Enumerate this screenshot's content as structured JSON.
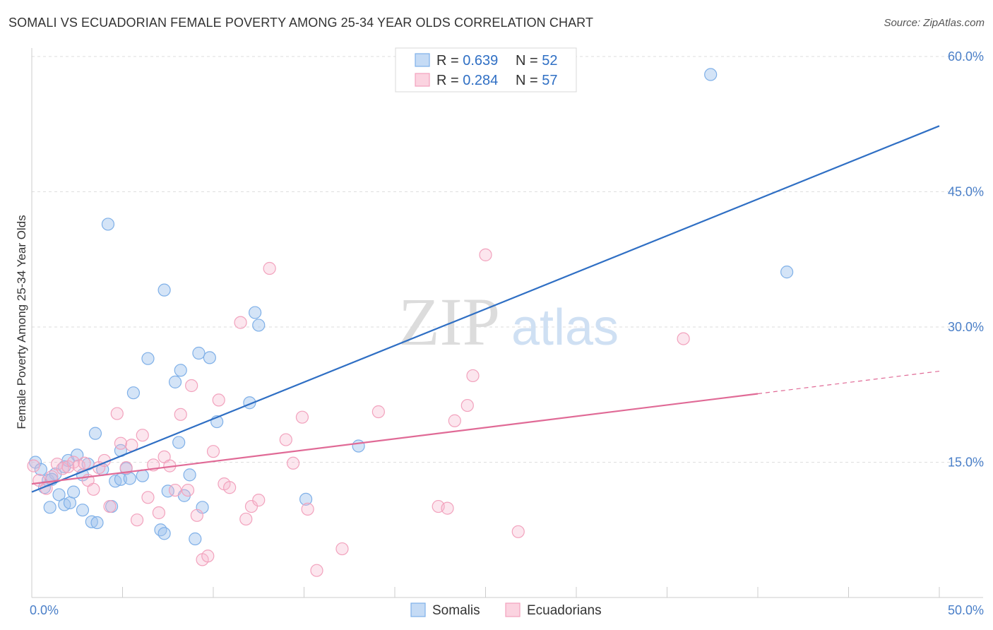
{
  "title": "SOMALI VS ECUADORIAN FEMALE POVERTY AMONG 25-34 YEAR OLDS CORRELATION CHART",
  "source": "Source: ZipAtlas.com",
  "watermark": {
    "zip": "ZIP",
    "atlas": "atlas"
  },
  "legend_top": {
    "rows": [
      {
        "r_label": "R = ",
        "r_value": "0.639",
        "n_label": "N = ",
        "n_value": "52"
      },
      {
        "r_label": "R = ",
        "r_value": "0.284",
        "n_label": "N = ",
        "n_value": "57"
      }
    ]
  },
  "chart_data": {
    "type": "scatter",
    "title": "SOMALI VS ECUADORIAN FEMALE POVERTY AMONG 25-34 YEAR OLDS CORRELATION CHART",
    "xlabel": "",
    "ylabel": "Female Poverty Among 25-34 Year Olds",
    "xlim": [
      0,
      50
    ],
    "ylim": [
      0,
      60
    ],
    "x_tick_labels": [
      "0.0%",
      "50.0%"
    ],
    "y_ticks": [
      15,
      30,
      45,
      60
    ],
    "y_tick_labels": [
      "15.0%",
      "30.0%",
      "45.0%",
      "60.0%"
    ],
    "grid": "horizontal dashed",
    "legend_placement": "top-center and bottom",
    "series": [
      {
        "name": "Somalis",
        "color": "#7fb0e8",
        "line_color": "#2f6fc4",
        "trend": {
          "x": [
            0,
            50
          ],
          "y": [
            11.7,
            52.3
          ]
        },
        "points": [
          [
            0.2,
            15.0
          ],
          [
            0.5,
            14.2
          ],
          [
            0.7,
            12.2
          ],
          [
            0.9,
            13.0
          ],
          [
            1.0,
            10.0
          ],
          [
            1.3,
            13.7
          ],
          [
            1.5,
            11.4
          ],
          [
            1.8,
            14.5
          ],
          [
            1.8,
            10.3
          ],
          [
            2.0,
            15.2
          ],
          [
            2.1,
            10.5
          ],
          [
            2.3,
            11.7
          ],
          [
            2.5,
            15.8
          ],
          [
            2.8,
            9.7
          ],
          [
            2.8,
            13.6
          ],
          [
            3.1,
            14.8
          ],
          [
            3.3,
            8.4
          ],
          [
            3.5,
            18.2
          ],
          [
            3.6,
            8.3
          ],
          [
            3.9,
            14.2
          ],
          [
            4.2,
            41.4
          ],
          [
            4.4,
            10.1
          ],
          [
            4.6,
            12.9
          ],
          [
            4.9,
            16.3
          ],
          [
            4.9,
            13.1
          ],
          [
            5.2,
            14.3
          ],
          [
            5.4,
            13.2
          ],
          [
            5.6,
            22.7
          ],
          [
            6.1,
            13.5
          ],
          [
            6.4,
            26.5
          ],
          [
            7.1,
            7.5
          ],
          [
            7.3,
            34.1
          ],
          [
            7.3,
            7.1
          ],
          [
            7.5,
            11.8
          ],
          [
            7.9,
            23.9
          ],
          [
            8.1,
            17.2
          ],
          [
            8.2,
            25.2
          ],
          [
            8.4,
            11.3
          ],
          [
            8.7,
            13.6
          ],
          [
            9.0,
            6.5
          ],
          [
            9.2,
            27.1
          ],
          [
            9.4,
            10.0
          ],
          [
            9.8,
            26.6
          ],
          [
            10.2,
            19.5
          ],
          [
            12.0,
            21.6
          ],
          [
            12.3,
            31.6
          ],
          [
            12.5,
            30.2
          ],
          [
            15.1,
            10.9
          ],
          [
            18.0,
            16.8
          ],
          [
            37.4,
            58.0
          ],
          [
            41.6,
            36.1
          ],
          [
            1.1,
            13.1
          ]
        ]
      },
      {
        "name": "Ecuadorians",
        "color": "#f2a2bd",
        "line_color": "#e06a96",
        "trend": {
          "x": [
            0,
            40
          ],
          "y": [
            12.6,
            22.6
          ]
        },
        "trend_dashed": {
          "x": [
            40,
            50
          ],
          "y": [
            22.6,
            25.1
          ]
        },
        "points": [
          [
            0.1,
            14.6
          ],
          [
            0.4,
            13.0
          ],
          [
            0.8,
            12.1
          ],
          [
            1.1,
            13.4
          ],
          [
            1.4,
            14.8
          ],
          [
            1.7,
            14.3
          ],
          [
            2.0,
            14.5
          ],
          [
            2.3,
            15.0
          ],
          [
            2.6,
            14.6
          ],
          [
            2.9,
            14.9
          ],
          [
            3.1,
            13.0
          ],
          [
            3.4,
            12.0
          ],
          [
            3.7,
            14.4
          ],
          [
            4.0,
            15.2
          ],
          [
            4.3,
            10.1
          ],
          [
            4.7,
            20.4
          ],
          [
            4.9,
            17.1
          ],
          [
            5.2,
            14.4
          ],
          [
            5.5,
            16.9
          ],
          [
            5.8,
            8.6
          ],
          [
            6.1,
            18.0
          ],
          [
            6.4,
            11.1
          ],
          [
            6.7,
            14.7
          ],
          [
            7.0,
            9.4
          ],
          [
            7.3,
            15.6
          ],
          [
            7.6,
            14.6
          ],
          [
            7.9,
            11.9
          ],
          [
            8.2,
            20.3
          ],
          [
            8.6,
            11.9
          ],
          [
            8.8,
            23.5
          ],
          [
            9.1,
            9.1
          ],
          [
            9.4,
            4.2
          ],
          [
            9.7,
            4.6
          ],
          [
            10.0,
            16.2
          ],
          [
            10.3,
            21.9
          ],
          [
            10.6,
            12.6
          ],
          [
            10.9,
            12.2
          ],
          [
            11.5,
            30.5
          ],
          [
            11.8,
            8.7
          ],
          [
            12.1,
            10.1
          ],
          [
            12.5,
            10.8
          ],
          [
            13.1,
            36.5
          ],
          [
            14.0,
            17.5
          ],
          [
            14.4,
            14.9
          ],
          [
            14.9,
            20.0
          ],
          [
            15.2,
            9.8
          ],
          [
            15.7,
            3.0
          ],
          [
            17.1,
            5.4
          ],
          [
            19.1,
            20.6
          ],
          [
            22.4,
            10.1
          ],
          [
            22.9,
            9.9
          ],
          [
            23.3,
            19.6
          ],
          [
            24.0,
            21.3
          ],
          [
            24.3,
            24.6
          ],
          [
            25.0,
            38.0
          ],
          [
            26.8,
            7.3
          ],
          [
            35.9,
            28.7
          ]
        ]
      }
    ]
  }
}
